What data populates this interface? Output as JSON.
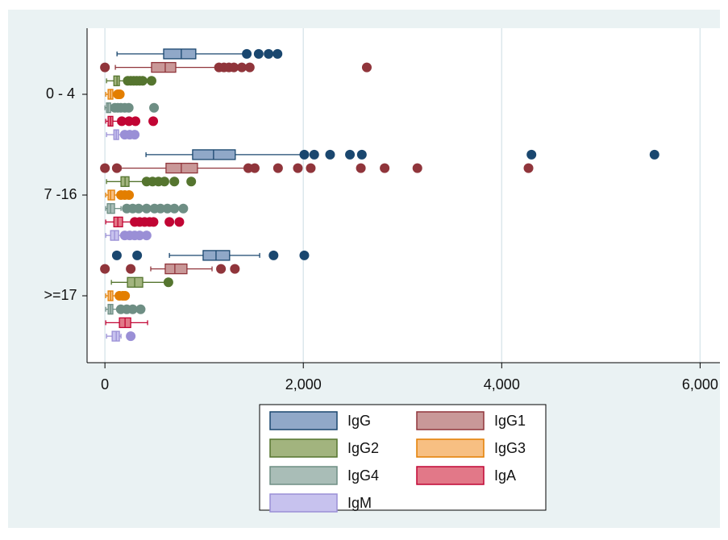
{
  "chart_data": {
    "type": "box",
    "orientation": "horizontal",
    "categories": [
      "0 - 4",
      "7 -16",
      ">=17"
    ],
    "xlim": [
      -180,
      6200
    ],
    "xticks": [
      0,
      {
        "value": 2000,
        "label": "2,000"
      },
      {
        "value": 4000,
        "label": "4,000"
      },
      {
        "value": 6000,
        "label": "6,000"
      }
    ],
    "grid": true,
    "legend": "bottom",
    "series": [
      {
        "name": "IgG",
        "color": "#1a476f",
        "fill": "#90a8c8",
        "boxes": [
          {
            "low": 122,
            "q1": 592,
            "median": 770,
            "q3": 916,
            "high": 1400,
            "outliers": [
              1430,
              1550,
              1650,
              1740
            ]
          },
          {
            "low": 414,
            "q1": 884,
            "median": 1095,
            "q3": 1314,
            "high": 1990,
            "outliers": [
              2010,
              2110,
              2270,
              2470,
              2590,
              4300,
              5540
            ]
          },
          {
            "low": 650,
            "q1": 990,
            "median": 1120,
            "q3": 1257,
            "high": 1560,
            "outliers": [
              120,
              325,
              1700,
              2010
            ]
          }
        ]
      },
      {
        "name": "IgG1",
        "color": "#90353b",
        "fill": "#c99898",
        "boxes": [
          {
            "low": 105,
            "q1": 470,
            "median": 608,
            "q3": 714,
            "high": 1120,
            "outliers": [
              0,
              1150,
              1200,
              1250,
              1300,
              1380,
              1460,
              2640
            ]
          },
          {
            "low": 162,
            "q1": 616,
            "median": 770,
            "q3": 933,
            "high": 1420,
            "outliers": [
              0,
              120,
              1445,
              1510,
              1745,
              1945,
              2075,
              2580,
              2820,
              3150,
              4270
            ]
          },
          {
            "low": 462,
            "q1": 608,
            "median": 705,
            "q3": 827,
            "high": 1080,
            "outliers": [
              0,
              260,
              1170,
              1310
            ]
          }
        ]
      },
      {
        "name": "IgG2",
        "color": "#55752f",
        "fill": "#a2b47e",
        "boxes": [
          {
            "low": 16,
            "q1": 90,
            "median": 122,
            "q3": 146,
            "high": 200,
            "outliers": [
              230,
              260,
              290,
              320,
              350,
              380,
              470
            ]
          },
          {
            "low": 16,
            "q1": 162,
            "median": 203,
            "q3": 243,
            "high": 390,
            "outliers": [
              420,
              480,
              540,
              600,
              700,
              870
            ]
          },
          {
            "low": 65,
            "q1": 227,
            "median": 300,
            "q3": 381,
            "high": 608,
            "outliers": [
              640
            ]
          }
        ]
      },
      {
        "name": "IgG3",
        "color": "#e37e00",
        "fill": "#f7bf82",
        "boxes": [
          {
            "low": 8,
            "q1": 32,
            "median": 57,
            "q3": 80,
            "high": 122,
            "outliers": [
              130,
              150
            ]
          },
          {
            "low": 8,
            "q1": 32,
            "median": 57,
            "q3": 97,
            "high": 146,
            "outliers": [
              162,
              200,
              243
            ]
          },
          {
            "low": 8,
            "q1": 32,
            "median": 57,
            "q3": 80,
            "high": 122,
            "outliers": [
              146,
              180,
              203
            ]
          }
        ]
      },
      {
        "name": "IgG4",
        "color": "#6e8e84",
        "fill": "#a9bdb7",
        "boxes": [
          {
            "low": 0,
            "q1": 16,
            "median": 32,
            "q3": 57,
            "high": 80,
            "outliers": [
              100,
              130,
              160,
              200,
              240,
              495
            ]
          },
          {
            "low": 8,
            "q1": 24,
            "median": 57,
            "q3": 97,
            "high": 162,
            "outliers": [
              220,
              280,
              340,
              420,
              500,
              560,
              630,
              700,
              790
            ]
          },
          {
            "low": 8,
            "q1": 32,
            "median": 57,
            "q3": 80,
            "high": 130,
            "outliers": [
              160,
              220,
              280,
              360
            ]
          }
        ]
      },
      {
        "name": "IgA",
        "color": "#c10534",
        "fill": "#e27888",
        "boxes": [
          {
            "low": 8,
            "q1": 32,
            "median": 57,
            "q3": 80,
            "high": 130,
            "outliers": [
              170,
              243,
              308,
              487
            ]
          },
          {
            "low": 8,
            "q1": 90,
            "median": 130,
            "q3": 178,
            "high": 284,
            "outliers": [
              300,
              350,
              400,
              450,
              490,
              650,
              750
            ]
          },
          {
            "low": 8,
            "q1": 146,
            "median": 203,
            "q3": 260,
            "high": 430,
            "outliers": []
          }
        ]
      },
      {
        "name": "IgM",
        "color": "#9a8fd6",
        "fill": "#c7c2ee",
        "boxes": [
          {
            "low": 16,
            "q1": 90,
            "median": 114,
            "q3": 138,
            "high": 162,
            "outliers": [
              200,
              250,
              300
            ]
          },
          {
            "low": 8,
            "q1": 57,
            "median": 97,
            "q3": 138,
            "high": 178,
            "outliers": [
              200,
              250,
              300,
              350,
              420
            ]
          },
          {
            "low": 16,
            "q1": 73,
            "median": 114,
            "q3": 146,
            "high": 162,
            "outliers": [
              260
            ]
          }
        ]
      }
    ]
  }
}
